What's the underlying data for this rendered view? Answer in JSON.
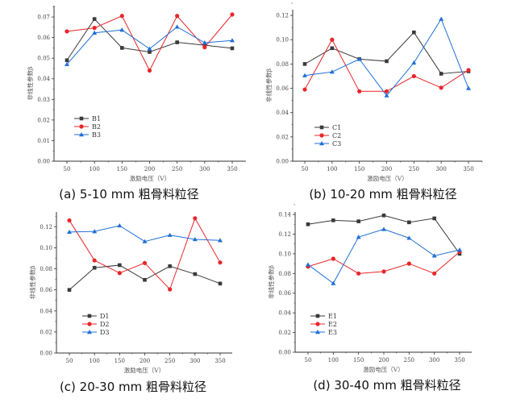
{
  "colors": {
    "series1": "#3a3a3a",
    "series2": "#e8262a",
    "series3": "#1f6fd6"
  },
  "chart_data": [
    {
      "type": "line",
      "caption": "(a)  5-10 mm 粗骨料粒径",
      "xlabel": "激励电压（V）",
      "ylabel": "非线性参数β",
      "x": [
        50,
        100,
        150,
        200,
        250,
        300,
        350
      ],
      "ylim": [
        0,
        0.0755
      ],
      "yticks": [
        "0.00",
        "0.01",
        "0.02",
        "0.03",
        "0.04",
        "0.05",
        "0.06",
        "0.07"
      ],
      "ystep": 0.01,
      "xticks": [
        "50",
        "100",
        "150",
        "200",
        "250",
        "300",
        "350"
      ],
      "legend": "lower-left",
      "grid": false,
      "series": [
        {
          "name": "B1",
          "marker": "square",
          "values": [
            0.049,
            0.069,
            0.055,
            0.053,
            0.0577,
            0.0563,
            0.0548
          ]
        },
        {
          "name": "B2",
          "marker": "circle",
          "values": [
            0.063,
            0.0647,
            0.0705,
            0.044,
            0.0705,
            0.0553,
            0.0712
          ]
        },
        {
          "name": "B3",
          "marker": "triangle",
          "values": [
            0.047,
            0.0623,
            0.0637,
            0.0545,
            0.0652,
            0.0575,
            0.0586
          ]
        }
      ]
    },
    {
      "type": "line",
      "caption": "(b)  10-20 mm 粗骨料粒径",
      "xlabel": "激励电压（V）",
      "ylabel": "非线性参数β",
      "x": [
        50,
        100,
        150,
        200,
        250,
        300,
        350
      ],
      "ylim": [
        0,
        0.1247
      ],
      "yticks": [
        "0.00",
        "0.02",
        "0.04",
        "0.06",
        "0.08",
        "0.10",
        "0.12"
      ],
      "ystep": 0.02,
      "xticks": [
        "50",
        "100",
        "150",
        "200",
        "250",
        "300",
        "350"
      ],
      "legend": "lower-left",
      "grid": false,
      "series": [
        {
          "name": "C1",
          "marker": "square",
          "values": [
            0.08,
            0.093,
            0.084,
            0.0823,
            0.106,
            0.072,
            0.074
          ]
        },
        {
          "name": "C2",
          "marker": "circle",
          "values": [
            0.059,
            0.1,
            0.0575,
            0.0575,
            0.07,
            0.0605,
            0.075
          ]
        },
        {
          "name": "C3",
          "marker": "triangle",
          "values": [
            0.0705,
            0.0735,
            0.084,
            0.054,
            0.081,
            0.117,
            0.06
          ]
        }
      ]
    },
    {
      "type": "line",
      "caption": "(c)  20-30 mm 粗骨料粒径",
      "xlabel": "激励电压（V）",
      "ylabel": "非线性参数β",
      "x": [
        50,
        100,
        150,
        200,
        250,
        300,
        350
      ],
      "ylim": [
        0,
        0.134
      ],
      "yticks": [
        "0.00",
        "0.02",
        "0.04",
        "0.06",
        "0.08",
        "0.10",
        "0.12"
      ],
      "ystep": 0.02,
      "xticks": [
        "50",
        "100",
        "150",
        "200",
        "250",
        "300",
        "350"
      ],
      "legend": "lower-left",
      "grid": false,
      "series": [
        {
          "name": "D1",
          "marker": "square",
          "values": [
            0.06,
            0.081,
            0.0835,
            0.0695,
            0.0825,
            0.075,
            0.066
          ]
        },
        {
          "name": "D2",
          "marker": "circle",
          "values": [
            0.126,
            0.088,
            0.076,
            0.0855,
            0.0605,
            0.128,
            0.086
          ]
        },
        {
          "name": "D3",
          "marker": "triangle",
          "values": [
            0.115,
            0.1155,
            0.121,
            0.106,
            0.112,
            0.108,
            0.107
          ]
        }
      ]
    },
    {
      "type": "line",
      "caption": "(d)  30-40 mm 粗骨料粒径",
      "xlabel": "激励电压（V）",
      "ylabel": "非线性参数β",
      "x": [
        50,
        100,
        150,
        200,
        250,
        300,
        350
      ],
      "ylim": [
        0,
        0.1425
      ],
      "yticks": [
        "0.00",
        "0.02",
        "0.04",
        "0.06",
        "0.08",
        "0.10",
        "0.12",
        "0.14"
      ],
      "ystep": 0.02,
      "xticks": [
        "50",
        "100",
        "150",
        "200",
        "250",
        "300",
        "350"
      ],
      "legend": "lower-left",
      "grid": false,
      "series": [
        {
          "name": "E1",
          "marker": "square",
          "values": [
            0.13,
            0.134,
            0.133,
            0.139,
            0.132,
            0.136,
            0.1
          ]
        },
        {
          "name": "E2",
          "marker": "circle",
          "values": [
            0.087,
            0.095,
            0.08,
            0.082,
            0.09,
            0.08,
            0.102
          ]
        },
        {
          "name": "E3",
          "marker": "triangle",
          "values": [
            0.089,
            0.07,
            0.117,
            0.125,
            0.116,
            0.098,
            0.104
          ]
        }
      ]
    }
  ]
}
